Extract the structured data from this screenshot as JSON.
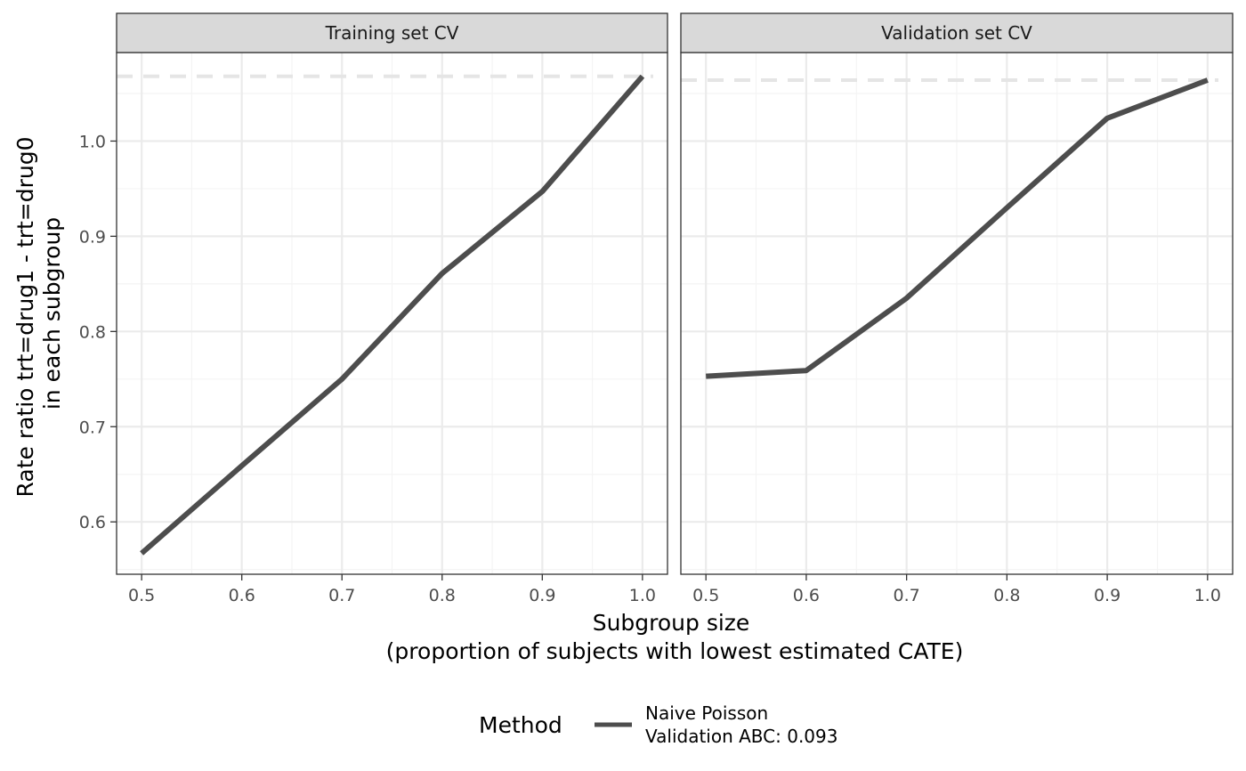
{
  "chart_data": {
    "type": "line",
    "ylabel": [
      "Rate ratio trt=drug1 - trt=drug0",
      "in each subgroup"
    ],
    "xlabel": [
      "Subgroup size",
      "(proportion of subjects with lowest estimated CATE)"
    ],
    "x_ticks": [
      "0.5",
      "0.6",
      "0.7",
      "0.8",
      "0.9",
      "1.0"
    ],
    "y_ticks": [
      "0.6",
      "0.7",
      "0.8",
      "0.9",
      "1.0"
    ],
    "xlim": [
      0.475,
      1.025
    ],
    "ylim": [
      0.545,
      1.093
    ],
    "grid": true,
    "legend": {
      "position": "bottom",
      "title": "Method",
      "entries": [
        {
          "lines": [
            "Naive Poisson",
            "Validation ABC: 0.093"
          ],
          "color": "#4d4d4d"
        }
      ]
    },
    "panels": [
      {
        "title": "Training set CV",
        "x": [
          0.5,
          0.6,
          0.7,
          0.8,
          0.9,
          1.0
        ],
        "y": [
          0.567,
          0.659,
          0.75,
          0.861,
          0.947,
          1.068
        ],
        "reference_y": 1.068
      },
      {
        "title": "Validation set CV",
        "x": [
          0.5,
          0.6,
          0.7,
          0.8,
          0.9,
          1.0
        ],
        "y": [
          0.753,
          0.759,
          0.835,
          0.93,
          1.024,
          1.064
        ],
        "reference_y": 1.064
      }
    ],
    "colors": {
      "line": "#4d4d4d",
      "reference": "#e5e5e5",
      "grid_major": "#ebebeb",
      "grid_minor": "#f4f4f4",
      "strip_fill": "#d9d9d9",
      "panel_border": "#333333"
    }
  }
}
